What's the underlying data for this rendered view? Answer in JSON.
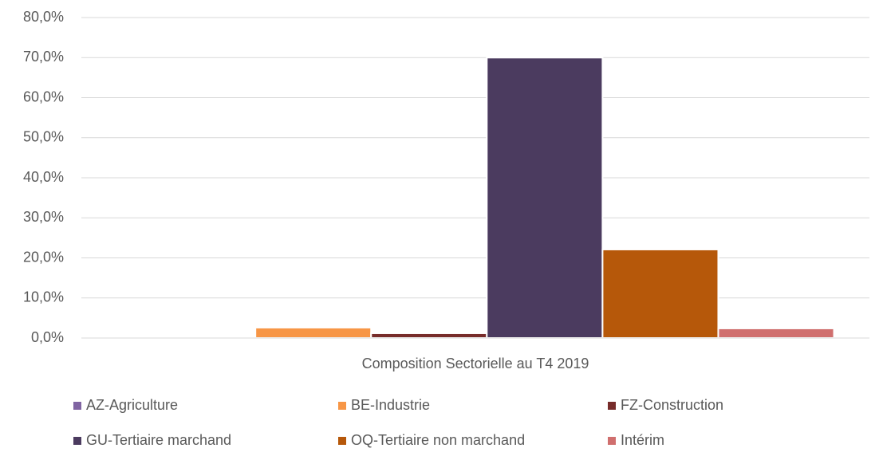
{
  "chart_data": {
    "type": "bar",
    "categories": [
      "Composition Sectorielle au T4 2019"
    ],
    "series": [
      {
        "name": "AZ-Agriculture",
        "color": "#8064a2",
        "values": [
          0
        ]
      },
      {
        "name": "BE-Industrie",
        "color": "#f79646",
        "values": [
          2.6
        ]
      },
      {
        "name": "FZ-Construction",
        "color": "#772c2a",
        "values": [
          1.2
        ]
      },
      {
        "name": "GU-Tertiaire marchand",
        "color": "#4b3b5f",
        "values": [
          70.0
        ]
      },
      {
        "name": "OQ-Tertiaire non marchand",
        "color": "#b6580a",
        "values": [
          22.1
        ]
      },
      {
        "name": "Intérim",
        "color": "#d06f6e",
        "values": [
          2.4
        ]
      }
    ],
    "ylim": [
      0,
      80
    ],
    "yticks": [
      {
        "value": 0,
        "label": "0,0%"
      },
      {
        "value": 10,
        "label": "10,0%"
      },
      {
        "value": 20,
        "label": "20,0%"
      },
      {
        "value": 30,
        "label": "30,0%"
      },
      {
        "value": 40,
        "label": "40,0%"
      },
      {
        "value": 50,
        "label": "50,0%"
      },
      {
        "value": 60,
        "label": "60,0%"
      },
      {
        "value": 70,
        "label": "70,0%"
      },
      {
        "value": 80,
        "label": "80,0%"
      }
    ],
    "grid": true
  }
}
